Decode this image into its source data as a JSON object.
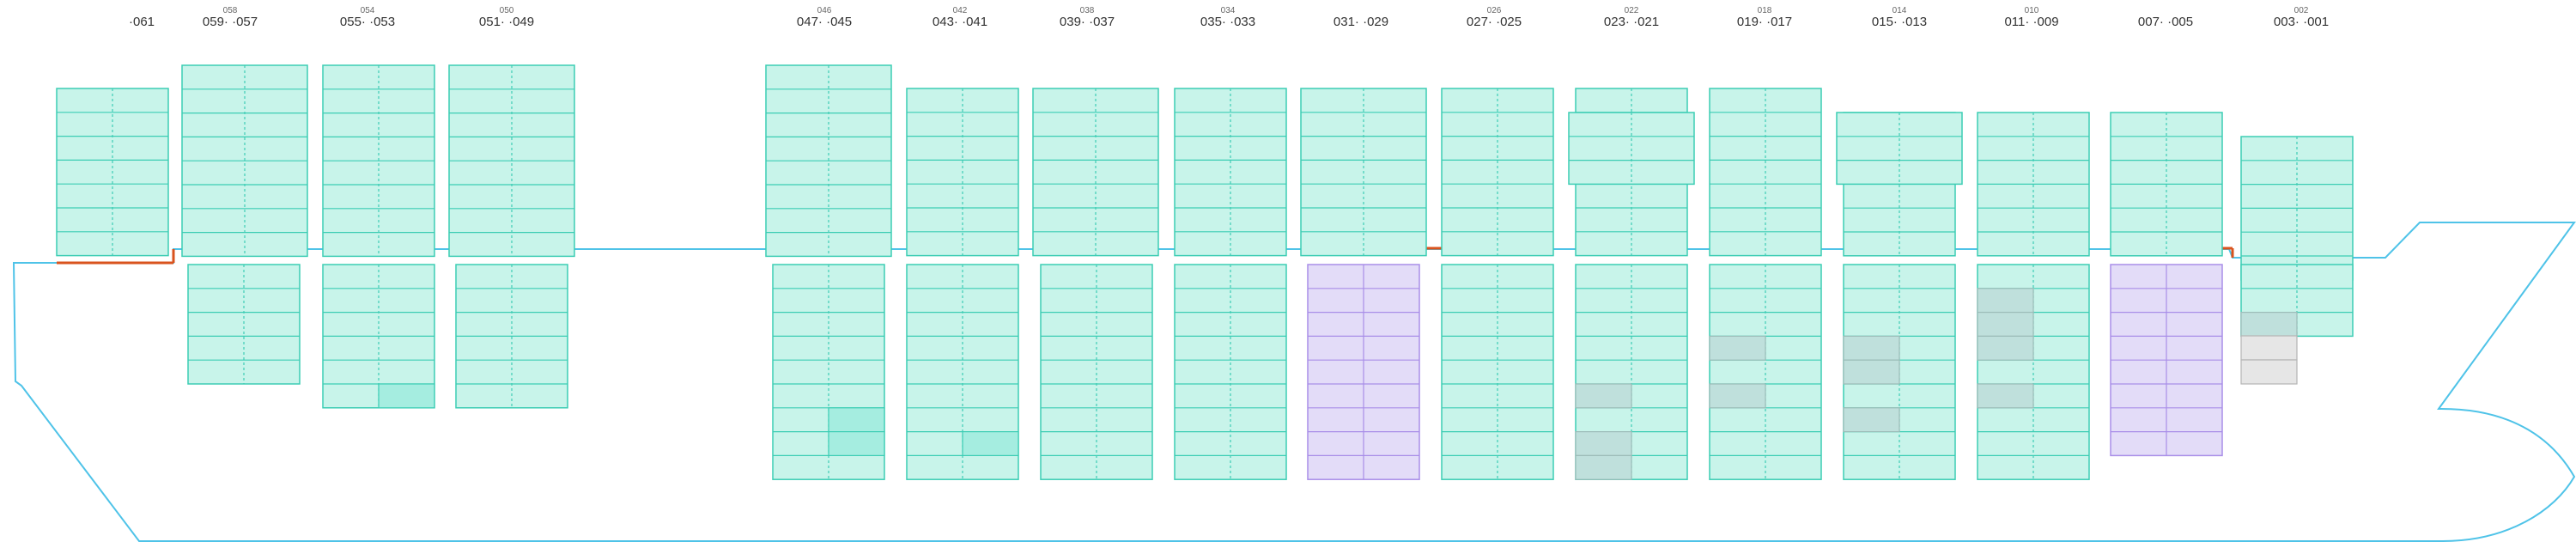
{
  "colors": {
    "hull": "#4fc3e8",
    "deck_hatch": "#d9531e",
    "cell_fill": "#c8f4ea",
    "cell_stroke": "#3ccdb4",
    "cell_highlight": "#a5ede0",
    "cell_purple": "#e3dcf8",
    "cell_purple_stroke": "#a98ee8",
    "cell_grey": "#bfe0dc",
    "cell_grey_stroke": "#9cbcb8",
    "cell_lightgrey": "#e6e6e6",
    "label": "#333333"
  },
  "bay_labels": [
    {
      "id": "bay-061",
      "main": "·061",
      "sup": ""
    },
    {
      "id": "bay-059-057",
      "main": "059·     ·057",
      "sup": "058"
    },
    {
      "id": "bay-055-053",
      "main": "055·     ·053",
      "sup": "054"
    },
    {
      "id": "bay-051-049",
      "main": "051·     ·049",
      "sup": "050"
    },
    {
      "id": "bay-047-045",
      "main": "047·     ·045",
      "sup": "046"
    },
    {
      "id": "bay-043-041",
      "main": "043·     ·041",
      "sup": "042"
    },
    {
      "id": "bay-039-037",
      "main": "039·     ·037",
      "sup": "038"
    },
    {
      "id": "bay-035-033",
      "main": "035·     ·033",
      "sup": "034"
    },
    {
      "id": "bay-031-029",
      "main": "031·     ·029",
      "sup": ""
    },
    {
      "id": "bay-027-025",
      "main": "027·     ·025",
      "sup": "026"
    },
    {
      "id": "bay-023-021",
      "main": "023·     ·021",
      "sup": "022"
    },
    {
      "id": "bay-019-017",
      "main": "019·     ·017",
      "sup": "018"
    },
    {
      "id": "bay-015-013",
      "main": "015·     ·013",
      "sup": "014"
    },
    {
      "id": "bay-011-009",
      "main": "011·     ·009",
      "sup": "010"
    },
    {
      "id": "bay-007-005",
      "main": "007·     ·005",
      "sup": ""
    },
    {
      "id": "bay-003-001",
      "main": "003·     ·001",
      "sup": "002"
    }
  ]
}
